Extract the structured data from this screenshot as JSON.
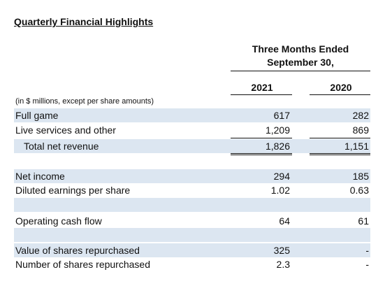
{
  "header": {
    "title": "Quarterly Financial Highlights",
    "period_line1": "Three Months Ended",
    "period_line2": "September 30,",
    "columns": [
      "2021",
      "2020"
    ],
    "note": "(in $ millions, except per share amounts)"
  },
  "table": {
    "rows": [
      [
        "Full game",
        "617",
        "282"
      ],
      [
        "Live services and other",
        "1,209",
        "869"
      ],
      [
        "Total net revenue",
        "1,826",
        "1,151"
      ],
      [
        "Net income",
        "294",
        "185"
      ],
      [
        "Diluted earnings per share",
        "1.02",
        "0.63"
      ],
      [
        "Operating cash flow",
        "64",
        "61"
      ],
      [
        "Value of shares repurchased",
        "325",
        "-"
      ],
      [
        "Number of shares repurchased",
        "2.3",
        "-"
      ]
    ]
  }
}
